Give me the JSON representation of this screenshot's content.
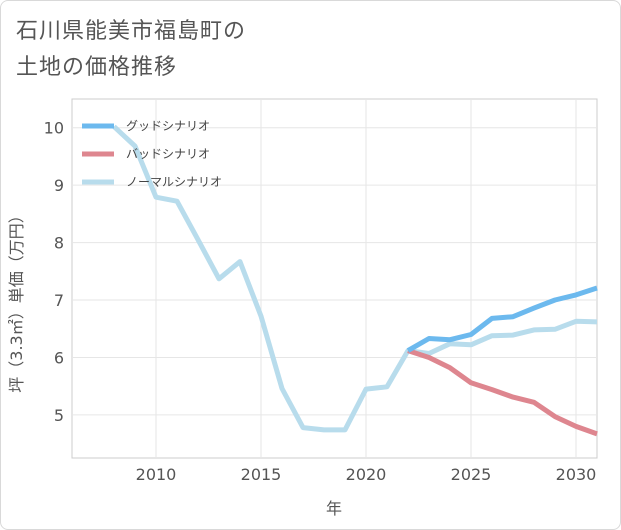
{
  "title_lines": [
    "石川県能美市福島町の",
    "土地の価格推移"
  ],
  "chart_data": {
    "type": "line",
    "xlabel": "年",
    "ylabel": "坪（3.3㎡）単価（万円）",
    "xlim": [
      2006,
      2031
    ],
    "ylim": [
      4.25,
      10.5
    ],
    "x_ticks": [
      2010,
      2015,
      2020,
      2025,
      2030
    ],
    "y_ticks": [
      5,
      6,
      7,
      8,
      9,
      10
    ],
    "grid": true,
    "legend_position": "top-left",
    "series": [
      {
        "name": "グッドシナリオ",
        "color": "#6cb9ee",
        "x": [
          2022,
          2023,
          2024,
          2025,
          2026,
          2027,
          2028,
          2029,
          2030,
          2031
        ],
        "values": [
          6.12,
          6.33,
          6.31,
          6.4,
          6.68,
          6.71,
          6.86,
          7.0,
          7.09,
          7.21
        ]
      },
      {
        "name": "バッドシナリオ",
        "color": "#de868f",
        "x": [
          2022,
          2023,
          2024,
          2025,
          2026,
          2027,
          2028,
          2029,
          2030,
          2031
        ],
        "values": [
          6.12,
          6.0,
          5.82,
          5.56,
          5.44,
          5.31,
          5.22,
          4.97,
          4.8,
          4.67
        ]
      },
      {
        "name": "ノーマルシナリオ",
        "color": "#b8dcec",
        "x": [
          2008,
          2009,
          2010,
          2011,
          2012,
          2013,
          2014,
          2015,
          2016,
          2017,
          2018,
          2019,
          2020,
          2021,
          2022,
          2023,
          2024,
          2025,
          2026,
          2027,
          2028,
          2029,
          2030,
          2031
        ],
        "values": [
          10.02,
          9.68,
          8.79,
          8.72,
          8.05,
          7.37,
          7.67,
          6.72,
          5.46,
          4.78,
          4.74,
          4.74,
          5.45,
          5.49,
          6.12,
          6.07,
          6.24,
          6.22,
          6.38,
          6.39,
          6.48,
          6.49,
          6.63,
          6.62
        ]
      }
    ]
  }
}
